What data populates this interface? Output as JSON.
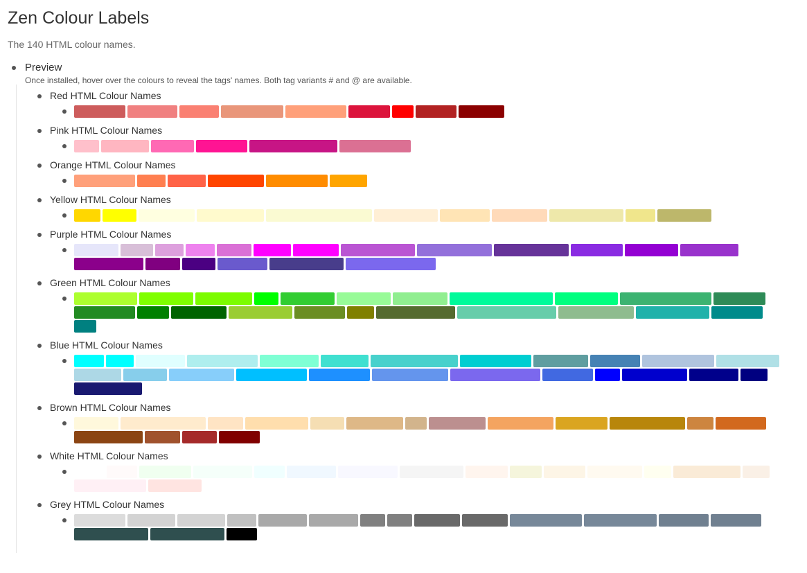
{
  "header": {
    "title": "Zen Colour Labels",
    "subtitle": "The 140 HTML colour names."
  },
  "preview": {
    "label": "Preview",
    "note": "Once installed, hover over the colours to reveal the tags' names. Both tag variants # and @ are available.",
    "groups": [
      {
        "label": "Red HTML Colour Names",
        "colors": [
          "#cd5c5c",
          "#f08080",
          "#fa8072",
          "#e9967a",
          "#ffa07a",
          "#dc143c",
          "#ff0000",
          "#b22222",
          "#8b0000"
        ]
      },
      {
        "label": "Pink HTML Colour Names",
        "colors": [
          "#ffc0cb",
          "#ffb6c1",
          "#ff69b4",
          "#ff1493",
          "#c71585",
          "#db7093"
        ]
      },
      {
        "label": "Orange HTML Colour Names",
        "colors": [
          "#ffa07a",
          "#ff7f50",
          "#ff6347",
          "#ff4500",
          "#ff8c00",
          "#ffa500"
        ]
      },
      {
        "label": "Yellow HTML Colour Names",
        "colors": [
          "#ffd700",
          "#ffff00",
          "#ffffe0",
          "#fffacd",
          "#fafad2",
          "#ffefd5",
          "#ffe4b5",
          "#ffdab9",
          "#eee8aa",
          "#f0e68c",
          "#bdb76b"
        ]
      },
      {
        "label": "Purple HTML Colour Names",
        "colors": [
          "#e6e6fa",
          "#d8bfd8",
          "#dda0dd",
          "#ee82ee",
          "#da70d6",
          "#ff00ff",
          "#ff00ff",
          "#ba55d3",
          "#9370db",
          "#663399",
          "#8a2be2",
          "#9400d3",
          "#9932cc",
          "#8b008b",
          "#800080",
          "#4b0082",
          "#6a5acd",
          "#483d8b",
          "#7b68ee"
        ]
      },
      {
        "label": "Green HTML Colour Names",
        "colors": [
          "#adff2f",
          "#7fff00",
          "#7cfc00",
          "#00ff00",
          "#32cd32",
          "#98fb98",
          "#90ee90",
          "#00fa9a",
          "#00ff7f",
          "#3cb371",
          "#2e8b57",
          "#228b22",
          "#008000",
          "#006400",
          "#9acd32",
          "#6b8e23",
          "#808000",
          "#556b2f",
          "#66cdaa",
          "#8fbc8f",
          "#20b2aa",
          "#008b8b",
          "#008080"
        ]
      },
      {
        "label": "Blue HTML Colour Names",
        "colors": [
          "#00ffff",
          "#00ffff",
          "#e0ffff",
          "#afeeee",
          "#7fffd4",
          "#40e0d0",
          "#48d1cc",
          "#00ced1",
          "#5f9ea0",
          "#4682b4",
          "#b0c4de",
          "#b0e0e6",
          "#add8e6",
          "#87ceeb",
          "#87cefa",
          "#00bfff",
          "#1e90ff",
          "#6495ed",
          "#7b68ee",
          "#4169e1",
          "#0000ff",
          "#0000cd",
          "#00008b",
          "#000080",
          "#191970"
        ]
      },
      {
        "label": "Brown HTML Colour Names",
        "colors": [
          "#fff8dc",
          "#ffebcd",
          "#ffe4c4",
          "#ffdead",
          "#f5deb3",
          "#deb887",
          "#d2b48c",
          "#bc8f8f",
          "#f4a460",
          "#daa520",
          "#b8860b",
          "#cd853f",
          "#d2691e",
          "#8b4513",
          "#a0522d",
          "#a52a2a",
          "#800000"
        ]
      },
      {
        "label": "White HTML Colour Names",
        "colors": [
          "#ffffff",
          "#fffafa",
          "#f0fff0",
          "#f5fffa",
          "#f0ffff",
          "#f0f8ff",
          "#f8f8ff",
          "#f5f5f5",
          "#fff5ee",
          "#f5f5dc",
          "#fdf5e6",
          "#fffaf0",
          "#fffff0",
          "#faebd7",
          "#faf0e6",
          "#fff0f5",
          "#ffe4e1"
        ]
      },
      {
        "label": "Grey HTML Colour Names",
        "colors": [
          "#dcdcdc",
          "#d3d3d3",
          "#d3d3d3",
          "#c0c0c0",
          "#a9a9a9",
          "#a9a9a9",
          "#808080",
          "#808080",
          "#696969",
          "#696969",
          "#778899",
          "#778899",
          "#708090",
          "#708090",
          "#2f4f4f",
          "#2f4f4f",
          "#000000"
        ]
      }
    ]
  }
}
